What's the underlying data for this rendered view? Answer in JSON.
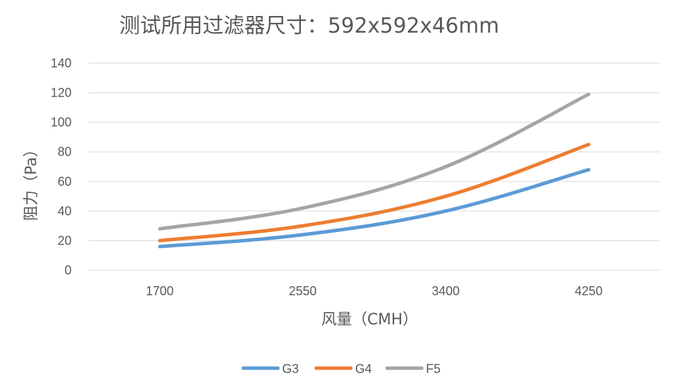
{
  "chart_data": {
    "type": "line",
    "title": "测试所用过滤器尺寸：592x592x46mm",
    "xlabel": "风量（CMH）",
    "ylabel": "阻力（Pa）",
    "categories": [
      "1700",
      "2550",
      "3400",
      "4250"
    ],
    "ylim": [
      0,
      140
    ],
    "yticks": [
      0,
      20,
      40,
      60,
      80,
      100,
      120,
      140
    ],
    "grid": true,
    "legend_position": "bottom",
    "series": [
      {
        "name": "G3",
        "values": [
          16,
          24,
          40,
          68
        ],
        "color": "#5b9bd5"
      },
      {
        "name": "G4",
        "values": [
          20,
          30,
          50,
          85
        ],
        "color": "#ed7d31"
      },
      {
        "name": "F5",
        "values": [
          28,
          42,
          70,
          119
        ],
        "color": "#a5a5a5"
      }
    ]
  }
}
